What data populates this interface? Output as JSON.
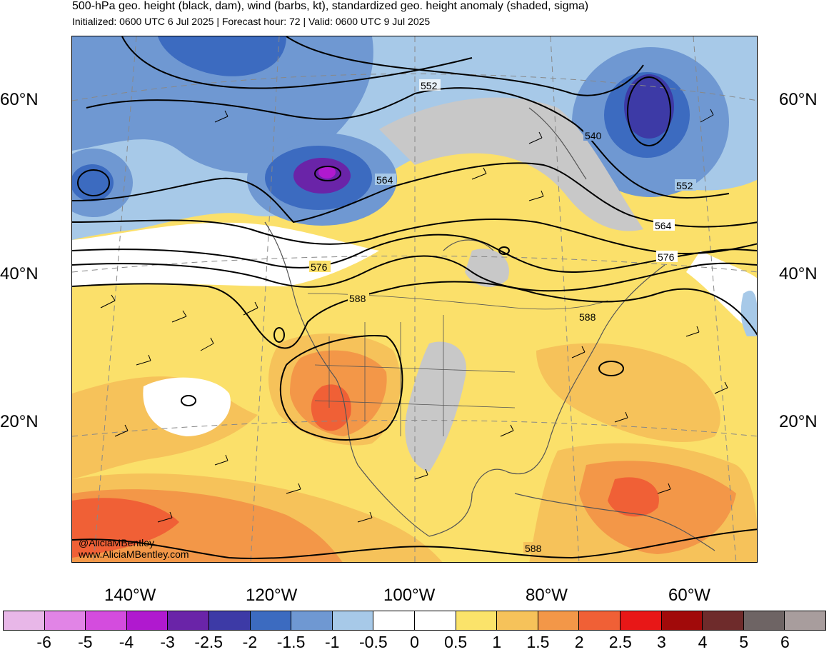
{
  "header": {
    "title": "500-hPa geo. height (black, dam), wind (barbs, kt), standardized geo. height anomaly (shaded, sigma)",
    "subtitle": "Initialized: 0600 UTC 6 Jul 2025 | Forecast hour: 72 | Valid: 0600 UTC 9 Jul 2025"
  },
  "map": {
    "lat_labels": [
      "60°N",
      "40°N",
      "20°N"
    ],
    "lon_labels": [
      "140°W",
      "120°W",
      "100°W",
      "80°W",
      "60°W"
    ],
    "contour_labels": [
      "552",
      "540",
      "564",
      "552",
      "564",
      "576",
      "576",
      "588",
      "588",
      "588"
    ],
    "colors": {
      "land_outline": "#555555",
      "contour": "#000000",
      "gray_shade": "#c8c8c8"
    }
  },
  "credit": {
    "handle": "@AliciaMBentley",
    "site": "www.AliciaMBentley.com"
  },
  "colorbar": {
    "colors": [
      "#e8b7e8",
      "#e184e6",
      "#d44cde",
      "#b019cf",
      "#6a24a8",
      "#3d3aa6",
      "#3c6bc0",
      "#6f98d2",
      "#a7c9e8",
      "#ffffff",
      "#ffffff",
      "#fbe36a",
      "#f6c25a",
      "#f39748",
      "#f06036",
      "#e81717",
      "#a10a0a",
      "#6e2b2b",
      "#6e6464",
      "#a89d9d"
    ],
    "labels": [
      "-6",
      "-5",
      "-4",
      "-3",
      "-2.5",
      "-2",
      "-1.5",
      "-1",
      "-0.5",
      "0",
      "0.5",
      "1",
      "1.5",
      "2",
      "2.5",
      "3",
      "4",
      "5",
      "6"
    ]
  }
}
